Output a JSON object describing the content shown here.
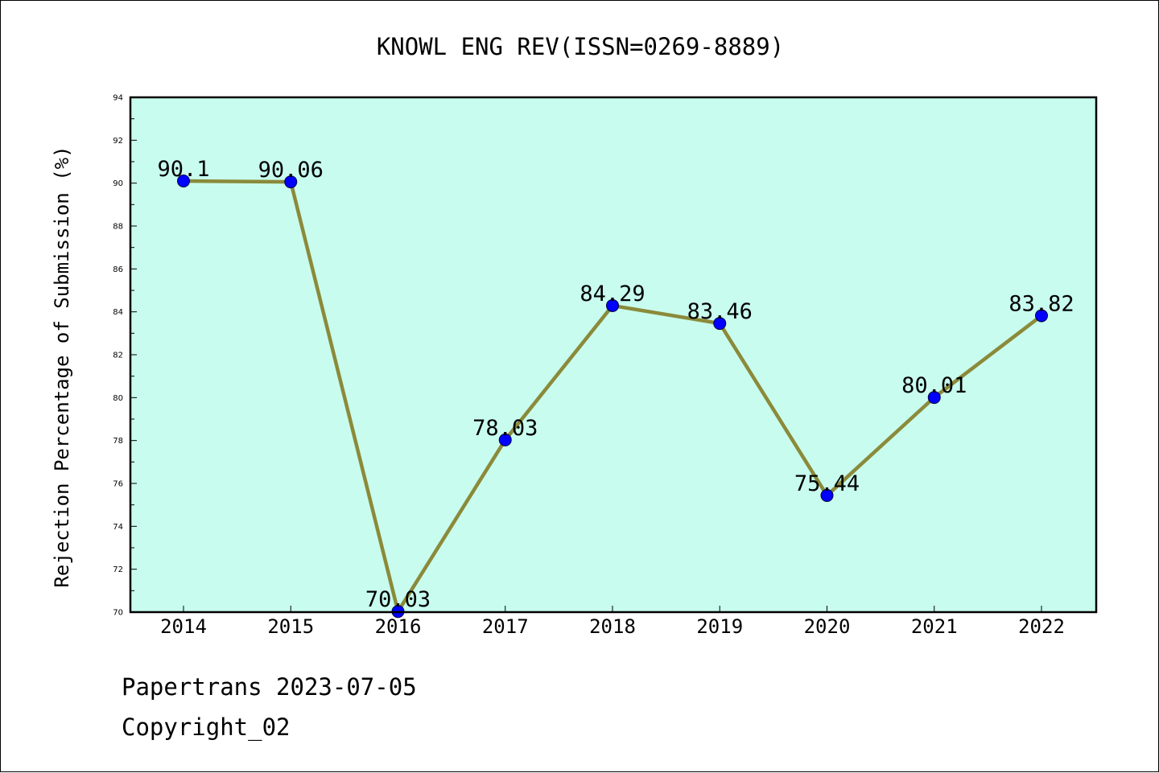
{
  "chart_data": {
    "type": "line",
    "title": "KNOWL ENG REV(ISSN=0269-8889)",
    "xlabel": "",
    "ylabel": "Rejection Percentage of Submission (%)",
    "categories": [
      "2014",
      "2015",
      "2016",
      "2017",
      "2018",
      "2019",
      "2020",
      "2021",
      "2022"
    ],
    "series": [
      {
        "values": [
          90.1,
          90.06,
          70.03,
          78.03,
          84.29,
          83.46,
          75.44,
          80.01,
          83.82
        ],
        "labels": [
          "90.1",
          "90.06",
          "70.03",
          "78.03",
          "84.29",
          "83.46",
          "75.44",
          "80.01",
          "83.82"
        ]
      }
    ],
    "ylim": [
      70,
      94
    ],
    "yticks": [
      70,
      72,
      74,
      76,
      78,
      80,
      82,
      84,
      86,
      88,
      90,
      92,
      94
    ],
    "grid": false,
    "legend": "none",
    "colors": {
      "plot_background": "#c8fcee",
      "line": "#8b8a3a",
      "marker": "#0000ff",
      "axes": "#000000"
    }
  },
  "footer": {
    "line1": "Papertrans 2023-07-05",
    "line2": "Copyright_02"
  }
}
